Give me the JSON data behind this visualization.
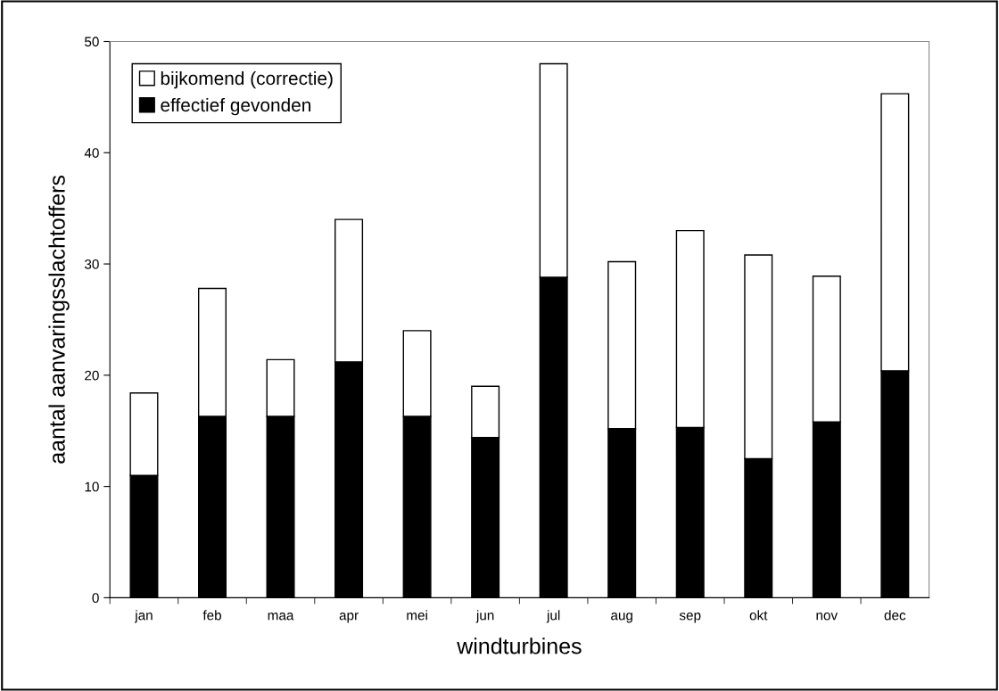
{
  "chart_data": {
    "type": "bar",
    "stacked": true,
    "xlabel": "windturbines",
    "ylabel": "aantal aanvaringsslachtoffers",
    "categories": [
      "jan",
      "feb",
      "maa",
      "apr",
      "mei",
      "jun",
      "jul",
      "aug",
      "sep",
      "okt",
      "nov",
      "dec"
    ],
    "series": [
      {
        "name": "effectief gevonden",
        "color": "#000000",
        "values": [
          11.0,
          16.3,
          16.3,
          21.2,
          16.3,
          14.4,
          28.8,
          15.2,
          15.3,
          12.5,
          15.8,
          20.4
        ]
      },
      {
        "name": "bijkomend (correctie)",
        "color": "#ffffff",
        "values": [
          7.4,
          11.5,
          5.1,
          12.8,
          7.7,
          4.6,
          19.2,
          15.0,
          17.7,
          18.3,
          13.1,
          24.9
        ]
      }
    ],
    "ylim": [
      0,
      50
    ],
    "yticks": [
      0,
      10,
      20,
      30,
      40,
      50
    ],
    "grid": false,
    "legend": "top left"
  }
}
